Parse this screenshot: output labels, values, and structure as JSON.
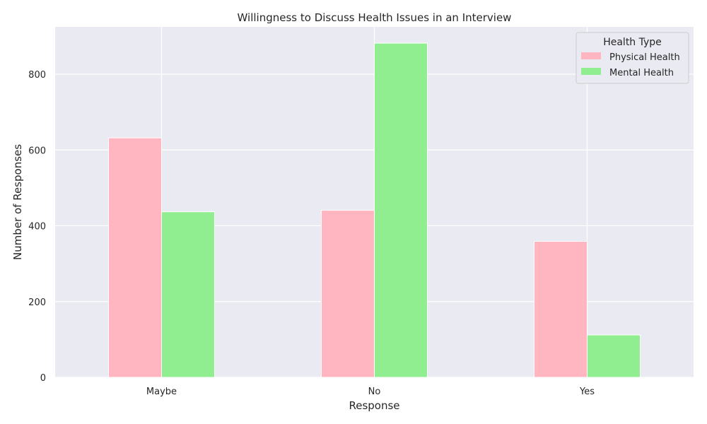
{
  "chart_data": {
    "type": "bar",
    "title": "Willingness to Discuss Health Issues in an Interview",
    "xlabel": "Response",
    "ylabel": "Number of Responses",
    "categories": [
      "Maybe",
      "No",
      "Yes"
    ],
    "series": [
      {
        "name": "Physical Health",
        "values": [
          632,
          441,
          359
        ],
        "color": "#ffb6c1"
      },
      {
        "name": "Mental Health",
        "values": [
          437,
          882,
          112
        ],
        "color": "#90ee90"
      }
    ],
    "ylim": [
      0,
      925
    ],
    "yticks": [
      0,
      200,
      400,
      600,
      800
    ],
    "grid": true,
    "legend": {
      "title": "Health Type",
      "placement": "top-right"
    },
    "background_color": "#eaeaf2",
    "grid_color": "#ffffff"
  }
}
